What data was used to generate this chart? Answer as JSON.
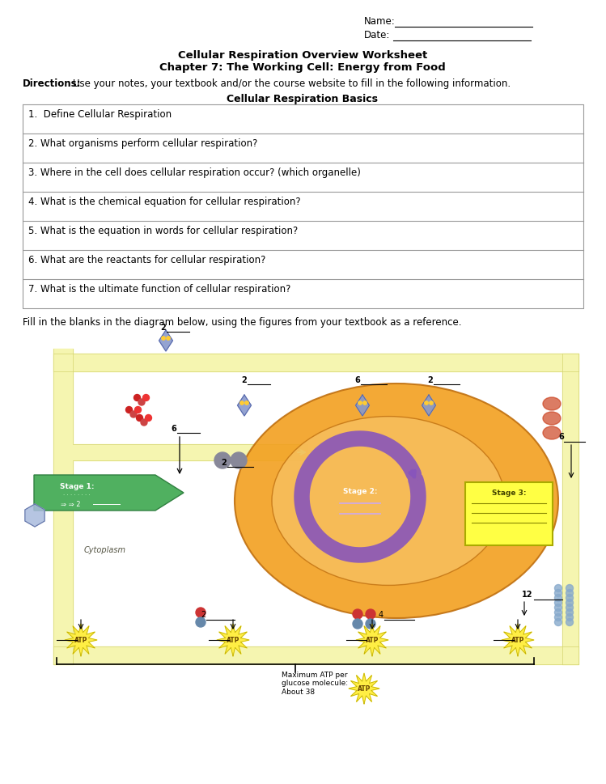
{
  "title_line1": "Cellular Respiration Overview Worksheet",
  "title_line2": "Chapter 7: The Working Cell: Energy from Food",
  "directions_bold": "Directions",
  "directions_text": ": Use your notes, your textbook and/or the course website to fill in the following information.",
  "section_title": "Cellular Respiration Basics",
  "questions": [
    "1.  Define Cellular Respiration",
    "2. What organisms perform cellular respiration?",
    "3. Where in the cell does cellular respiration occur? (which organelle)",
    "4. What is the chemical equation for cellular respiration?",
    "5. What is the equation in words for cellular respiration?",
    "6. What are the reactants for cellular respiration?",
    "7. What is the ultimate function of cellular respiration?"
  ],
  "fill_text": "Fill in the blanks in the diagram below, using the figures from your textbook as a reference.",
  "name_label": "Name:",
  "date_label": "Date:",
  "bg_color": "#ffffff",
  "text_color": "#000000",
  "box_edge_color": "#999999",
  "title_fontsize": 9.5,
  "body_fontsize": 8.5,
  "small_fontsize": 7.0,
  "diagram_caption": "Maximum ATP per\nglucose molecule:\nAbout 38"
}
